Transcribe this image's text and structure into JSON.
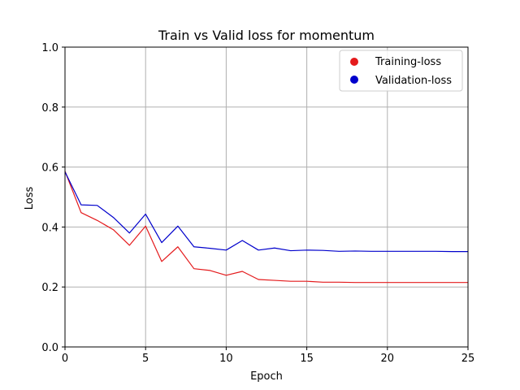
{
  "chart_data": {
    "type": "line",
    "title": "Train vs Valid loss for momentum",
    "xlabel": "Epoch",
    "ylabel": "Loss",
    "xlim": [
      0,
      25
    ],
    "ylim": [
      0,
      1.0
    ],
    "x_ticks": [
      0,
      5,
      10,
      15,
      20,
      25
    ],
    "y_ticks": [
      0.0,
      0.2,
      0.4,
      0.6,
      0.8,
      1.0
    ],
    "x_tick_labels": [
      "0",
      "5",
      "10",
      "15",
      "20",
      "25"
    ],
    "y_tick_labels": [
      "0.0",
      "0.2",
      "0.4",
      "0.6",
      "0.8",
      "1.0"
    ],
    "grid": true,
    "legend_position": "top-right",
    "x": [
      0,
      1,
      2,
      3,
      4,
      5,
      6,
      7,
      8,
      9,
      10,
      11,
      12,
      13,
      14,
      15,
      16,
      17,
      18,
      19,
      20,
      21,
      22,
      23,
      24,
      25
    ],
    "series": [
      {
        "name": "Training-loss",
        "color": "#e41a1c",
        "values": [
          0.586,
          0.448,
          0.422,
          0.391,
          0.339,
          0.403,
          0.285,
          0.334,
          0.261,
          0.255,
          0.239,
          0.252,
          0.225,
          0.222,
          0.219,
          0.219,
          0.216,
          0.216,
          0.215,
          0.215,
          0.215,
          0.215,
          0.215,
          0.215,
          0.215,
          0.215
        ]
      },
      {
        "name": "Validation-loss",
        "color": "#0000cc",
        "values": [
          0.584,
          0.474,
          0.472,
          0.432,
          0.38,
          0.443,
          0.348,
          0.403,
          0.334,
          0.329,
          0.323,
          0.355,
          0.323,
          0.33,
          0.321,
          0.323,
          0.322,
          0.319,
          0.32,
          0.319,
          0.319,
          0.319,
          0.319,
          0.319,
          0.318,
          0.318
        ]
      }
    ]
  }
}
